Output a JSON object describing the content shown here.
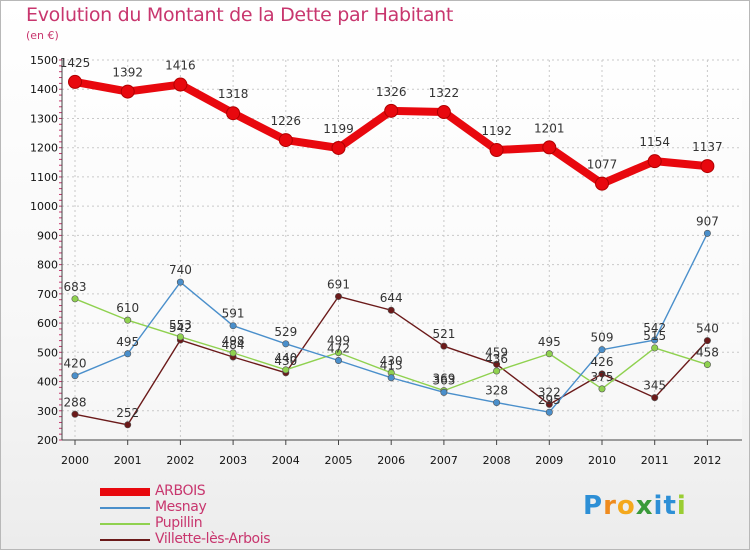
{
  "title": "Evolution du Montant de la Dette par Habitant",
  "subtitle": "(en €)",
  "logo": {
    "letters": [
      "P",
      "r",
      "o",
      "x",
      "i",
      "t",
      "i"
    ],
    "colors": [
      "#2d8fd6",
      "#ef8b1e",
      "#f4a81c",
      "#3a9a3a",
      "#2d8fd6",
      "#2d8fd6",
      "#9acd32"
    ]
  },
  "chart_data": {
    "type": "line",
    "x": [
      "2000",
      "2001",
      "2002",
      "2003",
      "2004",
      "2005",
      "2006",
      "2007",
      "2008",
      "2009",
      "2010",
      "2011",
      "2012"
    ],
    "ylim": [
      200,
      1500
    ],
    "yticks": [
      200,
      300,
      400,
      500,
      600,
      700,
      800,
      900,
      1000,
      1100,
      1200,
      1300,
      1400,
      1500
    ],
    "grid": true,
    "legend_position": "bottom-left",
    "series": [
      {
        "name": "ARBOIS",
        "color": "#e8080e",
        "width": 8,
        "values": [
          1425,
          1392,
          1416,
          1318,
          1226,
          1199,
          1326,
          1322,
          1192,
          1201,
          1077,
          1154,
          1137
        ]
      },
      {
        "name": "Mesnay",
        "color": "#4a8fcb",
        "width": 1.4,
        "values": [
          420,
          495,
          740,
          591,
          529,
          472,
          413,
          363,
          328,
          295,
          509,
          542,
          907
        ]
      },
      {
        "name": "Pupillin",
        "color": "#8fd14f",
        "width": 1.4,
        "values": [
          683,
          610,
          553,
          498,
          440,
          499,
          430,
          369,
          436,
          495,
          375,
          515,
          458
        ]
      },
      {
        "name": "Villette-lès-Arbois",
        "color": "#6b1a1a",
        "width": 1.4,
        "values": [
          288,
          252,
          542,
          484,
          430,
          691,
          644,
          521,
          459,
          322,
          426,
          345,
          540
        ]
      }
    ],
    "data_labels": [
      [
        "1425",
        "1392",
        "1416",
        "1318",
        "1226",
        "1199",
        "1326",
        "1322",
        "1192",
        "1201",
        "1077",
        "1154",
        "1137"
      ],
      [
        "420",
        "495",
        "740",
        "591",
        "529",
        "472",
        "413",
        "363",
        "328",
        "295",
        "509",
        "542",
        "907"
      ],
      [
        "683",
        "610",
        "553",
        "498",
        "440",
        "499",
        "430",
        "369",
        "436",
        "495",
        "375",
        "515",
        "458"
      ],
      [
        "288",
        "252",
        "542",
        "484",
        "430",
        "691",
        "644",
        "521",
        "459",
        "322",
        "426",
        "345",
        "540"
      ]
    ]
  }
}
